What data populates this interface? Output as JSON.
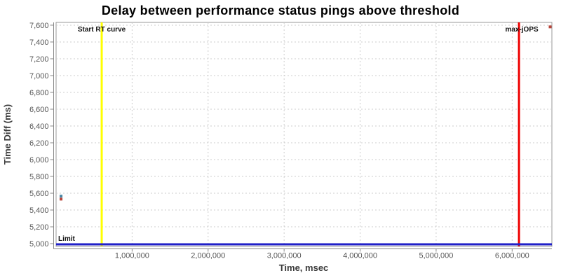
{
  "chart_data": {
    "type": "scatter",
    "title": "Delay between performance status pings above threshold",
    "xlabel": "Time, msec",
    "ylabel": "Time Diff (ms)",
    "xlim": [
      0,
      6523000
    ],
    "ylim": [
      4967,
      7633
    ],
    "x_ticks": [
      1000000,
      2000000,
      3000000,
      4000000,
      5000000,
      6000000
    ],
    "y_ticks": [
      5000,
      5200,
      5400,
      5600,
      5800,
      6000,
      6200,
      6400,
      6600,
      6800,
      7000,
      7200,
      7400,
      7600
    ],
    "grid": true,
    "legend": "none",
    "series": [
      {
        "name": "delay-points-red",
        "marker": "square",
        "color": "#b9453a",
        "points": [
          [
            65000,
            5530
          ],
          [
            6500000,
            7580
          ]
        ]
      },
      {
        "name": "delay-points-blue",
        "marker": "square",
        "color": "#4a87a5",
        "points": [
          [
            65000,
            5565
          ]
        ]
      }
    ],
    "markers": {
      "vertical": [
        {
          "label": "Start RT curve",
          "x": 600000,
          "color": "#ffff00"
        },
        {
          "label": "max-jOPS",
          "x": 6090000,
          "color": "#ee0000"
        }
      ],
      "horizontal": [
        {
          "label": "Limit",
          "y": 5000,
          "color": "#2121c8"
        }
      ]
    },
    "colors": {
      "gridline": "#cccccc",
      "plot_border": "#999999",
      "axis_line": "#888888",
      "tick_text": "#555555",
      "background": "#ffffff"
    }
  }
}
